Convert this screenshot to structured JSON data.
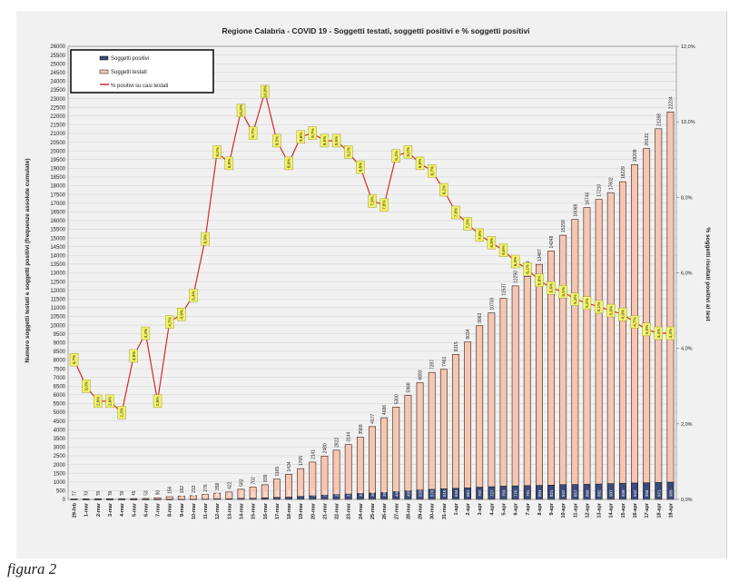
{
  "caption": "figura 2",
  "chart_data": {
    "type": "bar+line",
    "title": "Regione Calabria  - COVID 19 - Soggetti testati,  soggetti positivi e % soggetti positivi",
    "ylabel_left": "Numero soggetti testati e soggetti positivi (frequenze assolute cumulate)",
    "ylabel_right": "% soggetti risultati positivi al test",
    "ylim_left": [
      0,
      26000
    ],
    "ylim_right": [
      0,
      12
    ],
    "y_ticks_left": [
      "0",
      "500",
      "1000",
      "1500",
      "2000",
      "2500",
      "3000",
      "3500",
      "4000",
      "4500",
      "5000",
      "5500",
      "6000",
      "6500",
      "7000",
      "7500",
      "8000",
      "8500",
      "9000",
      "9500",
      "10000",
      "10500",
      "11000",
      "11500",
      "12000",
      "12500",
      "13000",
      "13500",
      "14000",
      "14500",
      "15000",
      "15500",
      "16000",
      "16500",
      "17000",
      "17500",
      "18000",
      "18500",
      "19000",
      "19500",
      "20000",
      "20500",
      "21000",
      "21500",
      "22000",
      "22500",
      "23000",
      "23500",
      "24000",
      "24500",
      "25000",
      "25500",
      "26000"
    ],
    "y_ticks_right": [
      "0,0%",
      "2,0%",
      "4,0%",
      "6,0%",
      "8,0%",
      "10,0%",
      "12,0%"
    ],
    "categories": [
      "29-feb",
      "1-mar",
      "2-mar",
      "3-mar",
      "4-mar",
      "5-mar",
      "6-mar",
      "7-mar",
      "8-mar",
      "9-mar",
      "10-mar",
      "11-mar",
      "12-mar",
      "13-mar",
      "14-mar",
      "15-mar",
      "16-mar",
      "17-mar",
      "18-mar",
      "19-mar",
      "20-mar",
      "21-mar",
      "22-mar",
      "23-mar",
      "24-mar",
      "25-mar",
      "26-mar",
      "27-mar",
      "28-mar",
      "29-mar",
      "30-mar",
      "31-mar",
      "1-apr",
      "2-apr",
      "3-apr",
      "4-apr",
      "5-apr",
      "6-apr",
      "7-apr",
      "8-apr",
      "9-apr",
      "10-apr",
      "11-apr",
      "12-apr",
      "13-apr",
      "14-apr",
      "15-apr",
      "16-apr",
      "17-apr",
      "18-apr",
      "19-apr"
    ],
    "legend": [
      "Soggetti positivi",
      "Soggetti testati",
      "% positivi su casi testati"
    ],
    "legend_position": "top-left",
    "series": [
      {
        "name": "Soggetti testati",
        "type": "bar",
        "color": "#f4c7b5",
        "values": [
          27,
          33,
          39,
          39,
          39,
          45,
          53,
          90,
          156,
          192,
          213,
          276,
          358,
          422,
          582,
          702,
          839,
          1165,
          1434,
          1765,
          2141,
          2480,
          2822,
          3144,
          3568,
          4177,
          4686,
          5300,
          5968,
          6693,
          7287,
          7461,
          8315,
          9034,
          9963,
          10700,
          11537,
          12250,
          12799,
          13487,
          14248,
          15159,
          16068,
          16746,
          17210,
          17602,
          18229,
          19209,
          20131,
          21268,
          22234
        ],
        "labels": [
          "27",
          "33",
          "39",
          "39",
          "39",
          "45",
          "53",
          "90",
          "156",
          "192",
          "213",
          "276",
          "358",
          "422",
          "582",
          "702",
          "839",
          "1165",
          "1434",
          "1765",
          "2141",
          "2480",
          "2822",
          "3144",
          "3568",
          "4177",
          "4686",
          "5300",
          "5968",
          "6693",
          "7287",
          "7461",
          "8315",
          "9034",
          "9963",
          "10700",
          "11537",
          "12250",
          "12799",
          "13487",
          "14248",
          "15159",
          "16068",
          "16746",
          "17210",
          "17602",
          "18229",
          "19209",
          "20131",
          "21268",
          "22234"
        ]
      },
      {
        "name": "Soggetti positivi",
        "type": "bar",
        "color": "#3a4a7a",
        "values": [
          1,
          1,
          1,
          1,
          1,
          1,
          2,
          2,
          2,
          8,
          11,
          16,
          31,
          39,
          56,
          58,
          89,
          111,
          128,
          171,
          210,
          245,
          275,
          311,
          339,
          365,
          391,
          442,
          493,
          539,
          576,
          610,
          634,
          661,
          702,
          727,
          759,
          776,
          791,
          804,
          821,
          847,
          857,
          866,
          882,
          907,
          928,
          942,
          956,
          971,
          989
        ],
        "labels": [
          "1",
          "1",
          "1",
          "1",
          "1",
          "1",
          "2",
          "2",
          "2",
          "8",
          "11",
          "16",
          "31",
          "39",
          "56",
          "58",
          "89",
          "111",
          "128",
          "171",
          "210",
          "245",
          "275",
          "311",
          "339",
          "365",
          "391",
          "442",
          "493",
          "539",
          "576",
          "610",
          "634",
          "661",
          "702",
          "727",
          "759",
          "776",
          "791",
          "804",
          "821",
          "847",
          "857",
          "866",
          "882",
          "907",
          "928",
          "942",
          "956",
          "971",
          "989"
        ]
      },
      {
        "name": "% positivi su casi testati",
        "type": "line",
        "axis": "right",
        "color": "#d42a2a",
        "values": [
          3.7,
          3.0,
          2.6,
          2.6,
          2.3,
          3.8,
          4.4,
          2.6,
          4.7,
          4.9,
          5.4,
          6.9,
          9.2,
          8.9,
          10.3,
          9.7,
          10.8,
          9.5,
          8.9,
          9.6,
          9.7,
          9.5,
          9.5,
          9.2,
          8.8,
          7.9,
          7.8,
          9.1,
          9.2,
          8.9,
          8.7,
          8.2,
          7.6,
          7.3,
          7.0,
          6.8,
          6.6,
          6.3,
          6.1,
          5.8,
          5.6,
          5.5,
          5.3,
          5.2,
          5.1,
          5.0,
          4.9,
          4.7,
          4.5,
          4.4,
          4.4
        ],
        "labels": [
          "3,7%",
          "3,0%",
          "2,6%",
          "2,6%",
          "2,3%",
          "3,8%",
          "4,4%",
          "2,6%",
          "4,7%",
          "4,9%",
          "5,4%",
          "6,9%",
          "9,2%",
          "8,9%",
          "10,3%",
          "9,7%",
          "10,8%",
          "9,5%",
          "8,9%",
          "9,6%",
          "9,7%",
          "9,5%",
          "9,5%",
          "9,2%",
          "8,8%",
          "7,9%",
          "7,8%",
          "9,1%",
          "9,2%",
          "8,9%",
          "8,7%",
          "8,2%",
          "7,6%",
          "7,3%",
          "7,0%",
          "6,8%",
          "6,6%",
          "6,3%",
          "6,1%",
          "5,8%",
          "5,6%",
          "5,5%",
          "5,3%",
          "5,2%",
          "5,1%",
          "5,0%",
          "4,9%",
          "4,7%",
          "4,5%",
          "4,4%",
          "4,4%"
        ]
      }
    ],
    "grid": true
  }
}
